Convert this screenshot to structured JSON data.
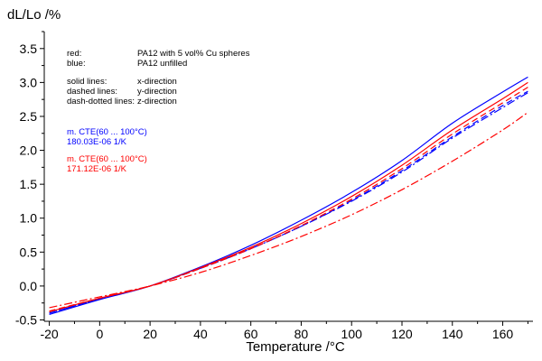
{
  "chart_data": {
    "type": "line",
    "ylabel": "dL/Lo /%",
    "xlabel": "Temperature /°C",
    "xlim": [
      -22,
      172
    ],
    "ylim": [
      -0.52,
      3.75
    ],
    "x_ticks": [
      "-20",
      "0",
      "20",
      "40",
      "60",
      "80",
      "100",
      "120",
      "140",
      "160"
    ],
    "y_ticks": [
      "-0.5",
      "0.0",
      "0.5",
      "1.0",
      "1.5",
      "2.0",
      "2.5",
      "3.0",
      "3.5"
    ],
    "legend_notes": [
      {
        "key": "red:",
        "value": "PA12 with 5 vol% Cu spheres"
      },
      {
        "key": "blue:",
        "value": "PA12 unfilled"
      },
      {
        "key": "solid lines:",
        "value": "x-direction"
      },
      {
        "key": "dashed lines:",
        "value": "y-direction"
      },
      {
        "key": "dash-dotted lines:",
        "value": "z-direction"
      }
    ],
    "annotations": [
      {
        "line1": "m. CTE(60 ... 100°C)",
        "line2": "180.03E-06 1/K",
        "color": "#0000ff"
      },
      {
        "line1": "m. CTE(60 ... 100°C)",
        "line2": "171.12E-06 1/K",
        "color": "#ff0000"
      }
    ],
    "series": [
      {
        "color": "#0000ff",
        "style": "solid",
        "x": [
          -20,
          0,
          20,
          40,
          60,
          80,
          100,
          120,
          140,
          160,
          170
        ],
        "y": [
          -0.42,
          -0.2,
          0.0,
          0.28,
          0.6,
          0.97,
          1.38,
          1.85,
          2.4,
          2.86,
          3.08
        ]
      },
      {
        "color": "#0000ff",
        "style": "dashed",
        "x": [
          -20,
          0,
          20,
          40,
          60,
          80,
          100,
          120,
          140,
          160,
          170
        ],
        "y": [
          -0.4,
          -0.19,
          0.0,
          0.26,
          0.55,
          0.88,
          1.26,
          1.7,
          2.2,
          2.66,
          2.87
        ]
      },
      {
        "color": "#0000ff",
        "style": "dashdot",
        "x": [
          -20,
          0,
          20,
          40,
          60,
          80,
          100,
          120,
          140,
          160,
          170
        ],
        "y": [
          -0.4,
          -0.19,
          0.0,
          0.26,
          0.55,
          0.88,
          1.25,
          1.68,
          2.18,
          2.63,
          2.85
        ]
      },
      {
        "color": "#ff0000",
        "style": "solid",
        "x": [
          -20,
          0,
          20,
          40,
          60,
          80,
          100,
          120,
          140,
          160,
          170
        ],
        "y": [
          -0.38,
          -0.18,
          0.0,
          0.27,
          0.57,
          0.92,
          1.32,
          1.78,
          2.3,
          2.76,
          3.0
        ]
      },
      {
        "color": "#ff0000",
        "style": "dashed",
        "x": [
          -20,
          0,
          20,
          40,
          60,
          80,
          100,
          120,
          140,
          160,
          170
        ],
        "y": [
          -0.37,
          -0.18,
          0.0,
          0.26,
          0.55,
          0.89,
          1.28,
          1.73,
          2.24,
          2.7,
          2.93
        ]
      },
      {
        "color": "#ff0000",
        "style": "dashdot",
        "x": [
          -20,
          0,
          20,
          40,
          60,
          80,
          100,
          120,
          140,
          160,
          170
        ],
        "y": [
          -0.32,
          -0.16,
          0.0,
          0.2,
          0.45,
          0.73,
          1.05,
          1.42,
          1.84,
          2.3,
          2.56
        ]
      }
    ]
  }
}
